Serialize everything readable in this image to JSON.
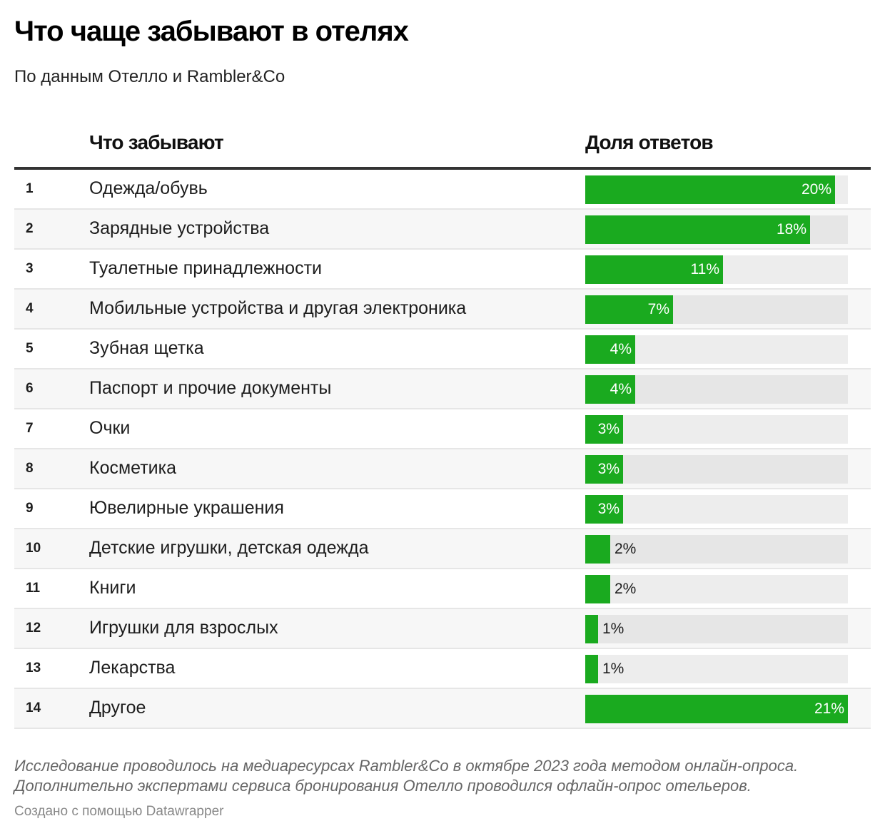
{
  "header": {
    "title": "Что чаще забывают в отелях",
    "subtitle": "По данным Отелло и Rambler&Co"
  },
  "columns": {
    "item": "Что забывают",
    "share": "Доля ответов"
  },
  "colors": {
    "bar": "#1aaa1f",
    "track": "#ededed"
  },
  "chart_data": {
    "type": "table",
    "title": "Что чаще забывают в отелях",
    "xlim": [
      0,
      21
    ],
    "rows": [
      {
        "rank": "1",
        "label": "Одежда/обувь",
        "value": 20,
        "text": "20%"
      },
      {
        "rank": "2",
        "label": "Зарядные устройства",
        "value": 18,
        "text": "18%"
      },
      {
        "rank": "3",
        "label": "Туалетные принадлежности",
        "value": 11,
        "text": "11%"
      },
      {
        "rank": "4",
        "label": "Мобильные устройства и другая электроника",
        "value": 7,
        "text": "7%"
      },
      {
        "rank": "5",
        "label": "Зубная щетка",
        "value": 4,
        "text": "4%"
      },
      {
        "rank": "6",
        "label": "Паспорт и прочие документы",
        "value": 4,
        "text": "4%"
      },
      {
        "rank": "7",
        "label": "Очки",
        "value": 3,
        "text": "3%"
      },
      {
        "rank": "8",
        "label": "Косметика",
        "value": 3,
        "text": "3%"
      },
      {
        "rank": "9",
        "label": "Ювелирные украшения",
        "value": 3,
        "text": "3%"
      },
      {
        "rank": "10",
        "label": "Детские игрушки, детская одежда",
        "value": 2,
        "text": "2%"
      },
      {
        "rank": "11",
        "label": "Книги",
        "value": 2,
        "text": "2%"
      },
      {
        "rank": "12",
        "label": "Игрушки для взрослых",
        "value": 1,
        "text": "1%"
      },
      {
        "rank": "13",
        "label": "Лекарства",
        "value": 1,
        "text": "1%"
      },
      {
        "rank": "14",
        "label": "Другое",
        "value": 21,
        "text": "21%"
      }
    ]
  },
  "footer": {
    "note1": "Исследование проводилось на медиаресурсах Rambler&Co в октябре 2023 года методом онлайн-опроса.",
    "note2": "Дополнительно экспертами сервиса бронирования Отелло проводился офлайн-опрос отельеров.",
    "credit": "Создано с помощью Datawrapper"
  }
}
